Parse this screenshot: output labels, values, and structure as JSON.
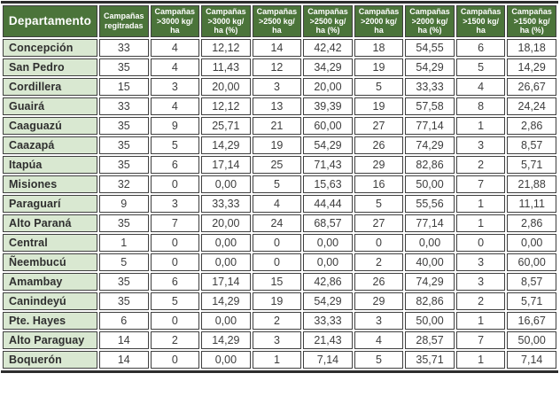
{
  "table": {
    "headers": [
      {
        "label": "Departamento",
        "lines": [
          "Departamento"
        ]
      },
      {
        "label": "Campañas regitradas",
        "lines": [
          "Campañas",
          "regitradas"
        ]
      },
      {
        "label": "Campañas >3000 kg/ha",
        "lines": [
          "Campañas",
          ">3000 kg/",
          "ha"
        ]
      },
      {
        "label": "Campañas >3000 kg/ha (%)",
        "lines": [
          "Campañas",
          ">3000 kg/",
          "ha (%)"
        ]
      },
      {
        "label": "Campañas >2500 kg/ha",
        "lines": [
          "Campañas",
          ">2500 kg/",
          "ha"
        ]
      },
      {
        "label": "Campañas >2500 kg/ha (%)",
        "lines": [
          "Campañas",
          ">2500 kg/",
          "ha (%)"
        ]
      },
      {
        "label": "Campañas >2000 kg/ha",
        "lines": [
          "Campañas",
          ">2000 kg/",
          "ha"
        ]
      },
      {
        "label": "Campañas >2000 kg/ha (%)",
        "lines": [
          "Campañas",
          ">2000 kg/",
          "ha (%)"
        ]
      },
      {
        "label": "Campañas >1500 kg/ha",
        "lines": [
          "Campañas",
          ">1500 kg/",
          "ha"
        ]
      },
      {
        "label": "Campañas >1500 kg/ha (%)",
        "lines": [
          "Campañas",
          ">1500 kg/",
          "ha (%)"
        ]
      }
    ],
    "rows": [
      {
        "department": "Concepción",
        "values": [
          "33",
          "4",
          "12,12",
          "14",
          "42,42",
          "18",
          "54,55",
          "6",
          "18,18"
        ]
      },
      {
        "department": "San Pedro",
        "values": [
          "35",
          "4",
          "11,43",
          "12",
          "34,29",
          "19",
          "54,29",
          "5",
          "14,29"
        ]
      },
      {
        "department": "Cordillera",
        "values": [
          "15",
          "3",
          "20,00",
          "3",
          "20,00",
          "5",
          "33,33",
          "4",
          "26,67"
        ]
      },
      {
        "department": "Guairá",
        "values": [
          "33",
          "4",
          "12,12",
          "13",
          "39,39",
          "19",
          "57,58",
          "8",
          "24,24"
        ]
      },
      {
        "department": "Caaguazú",
        "values": [
          "35",
          "9",
          "25,71",
          "21",
          "60,00",
          "27",
          "77,14",
          "1",
          "2,86"
        ]
      },
      {
        "department": "Caazapá",
        "values": [
          "35",
          "5",
          "14,29",
          "19",
          "54,29",
          "26",
          "74,29",
          "3",
          "8,57"
        ]
      },
      {
        "department": "Itapúa",
        "values": [
          "35",
          "6",
          "17,14",
          "25",
          "71,43",
          "29",
          "82,86",
          "2",
          "5,71"
        ]
      },
      {
        "department": "Misiones",
        "values": [
          "32",
          "0",
          "0,00",
          "5",
          "15,63",
          "16",
          "50,00",
          "7",
          "21,88"
        ]
      },
      {
        "department": "Paraguarí",
        "values": [
          "9",
          "3",
          "33,33",
          "4",
          "44,44",
          "5",
          "55,56",
          "1",
          "11,11"
        ]
      },
      {
        "department": "Alto Paraná",
        "values": [
          "35",
          "7",
          "20,00",
          "24",
          "68,57",
          "27",
          "77,14",
          "1",
          "2,86"
        ]
      },
      {
        "department": "Central",
        "values": [
          "1",
          "0",
          "0,00",
          "0",
          "0,00",
          "0",
          "0,00",
          "0",
          "0,00"
        ]
      },
      {
        "department": "Ñeembucú",
        "values": [
          "5",
          "0",
          "0,00",
          "0",
          "0,00",
          "2",
          "40,00",
          "3",
          "60,00"
        ]
      },
      {
        "department": "Amambay",
        "values": [
          "35",
          "6",
          "17,14",
          "15",
          "42,86",
          "26",
          "74,29",
          "3",
          "8,57"
        ]
      },
      {
        "department": "Canindeyú",
        "values": [
          "35",
          "5",
          "14,29",
          "19",
          "54,29",
          "29",
          "82,86",
          "2",
          "5,71"
        ]
      },
      {
        "department": "Pte. Hayes",
        "values": [
          "6",
          "0",
          "0,00",
          "2",
          "33,33",
          "3",
          "50,00",
          "1",
          "16,67"
        ]
      },
      {
        "department": "Alto Paraguay",
        "values": [
          "14",
          "2",
          "14,29",
          "3",
          "21,43",
          "4",
          "28,57",
          "7",
          "50,00"
        ]
      },
      {
        "department": "Boquerón",
        "values": [
          "14",
          "0",
          "0,00",
          "1",
          "7,14",
          "5",
          "35,71",
          "1",
          "7,14"
        ]
      }
    ]
  },
  "colors": {
    "header_bg": "#4b743a",
    "header_text": "#ffffff",
    "department_bg": "#d9e8d1",
    "cell_bg": "#ffffff",
    "border": "#3f3f3f",
    "outer_border": "#2d2d2d",
    "text": "#3d3d3d"
  }
}
